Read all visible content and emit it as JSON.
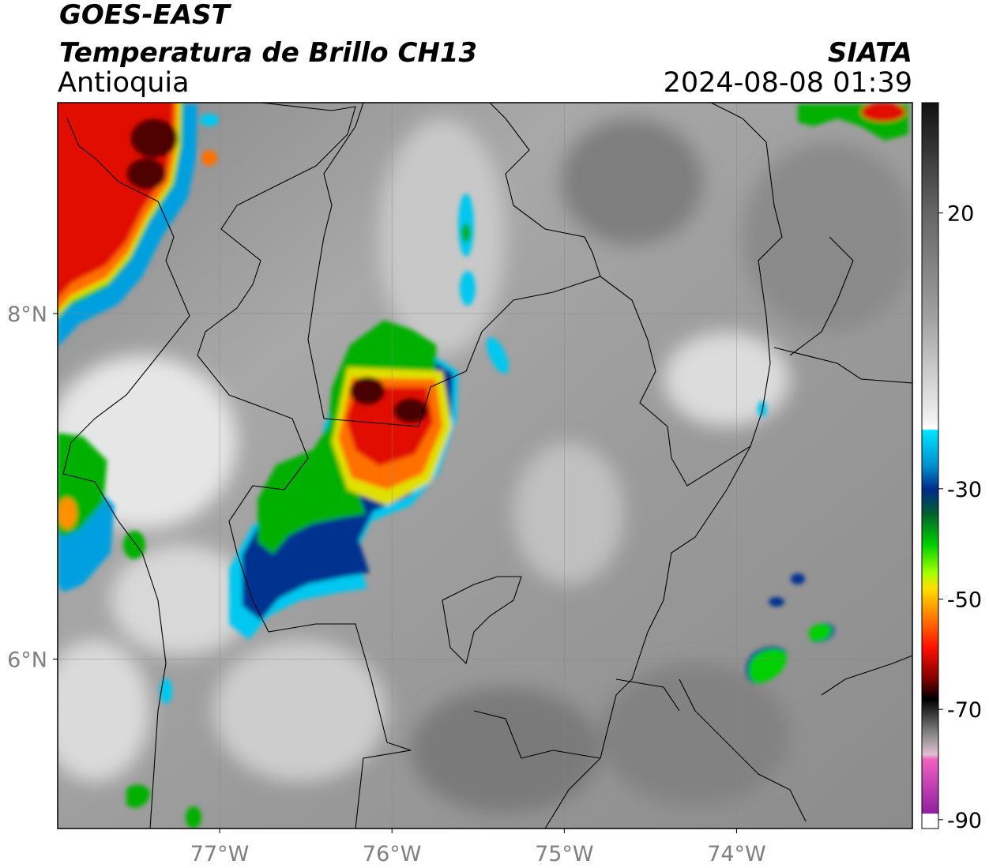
{
  "header": {
    "title": "GOES-EAST",
    "subtitle": "Temperatura de Brillo CH13",
    "region": "Antioquia",
    "source": "SIATA",
    "timestamp": "2024-08-08 01:39"
  },
  "map": {
    "xlim": [
      -77.94,
      -72.98
    ],
    "ylim": [
      5.02,
      9.22
    ],
    "xticks": [
      {
        "value": -77,
        "label": "77°W"
      },
      {
        "value": -76,
        "label": "76°W"
      },
      {
        "value": -75,
        "label": "75°W"
      },
      {
        "value": -74,
        "label": "74°W"
      }
    ],
    "yticks": [
      {
        "value": 6,
        "label": "6°N"
      },
      {
        "value": 8,
        "label": "8°N"
      }
    ],
    "grid": true
  },
  "colorbar": {
    "lim": [
      -91.6,
      40
    ],
    "ticks": [
      20,
      -30,
      -50,
      -70,
      -90
    ]
  }
}
